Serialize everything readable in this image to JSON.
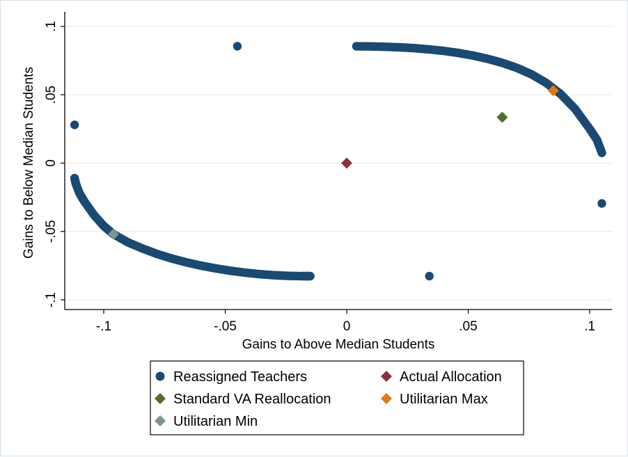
{
  "chart_data": {
    "type": "scatter",
    "xlabel": "Gains to Above Median Students",
    "ylabel": "Gains to Below Median Students",
    "xlim": [
      -0.11,
      0.11
    ],
    "ylim": [
      -0.1,
      0.1
    ],
    "x_ticks": [
      -0.1,
      -0.05,
      0,
      0.05,
      0.1
    ],
    "x_tick_labels": [
      "-.1",
      "-.05",
      "0",
      ".05",
      ".1"
    ],
    "y_ticks": [
      -0.1,
      -0.05,
      0,
      0.05,
      0.1
    ],
    "y_tick_labels": [
      "-.1",
      "-.05",
      "0",
      ".05",
      ".1"
    ],
    "grid": true,
    "legend_position": "bottom",
    "series": [
      {
        "name": "Reassigned Teachers",
        "marker": "circle",
        "color": "#1a4a72",
        "points": [
          [
            0.004,
            0.0855
          ],
          [
            0.01,
            0.0854
          ],
          [
            0.016,
            0.0851
          ],
          [
            0.022,
            0.0847
          ],
          [
            0.028,
            0.0841
          ],
          [
            0.034,
            0.0832
          ],
          [
            0.04,
            0.0821
          ],
          [
            0.046,
            0.0806
          ],
          [
            0.052,
            0.0787
          ],
          [
            0.058,
            0.0763
          ],
          [
            0.064,
            0.0734
          ],
          [
            0.07,
            0.0697
          ],
          [
            0.076,
            0.065
          ],
          [
            0.082,
            0.0588
          ],
          [
            0.088,
            0.0506
          ],
          [
            0.094,
            0.0396
          ],
          [
            0.1,
            0.025
          ],
          [
            0.103,
            0.017
          ],
          [
            0.105,
            0.0075
          ],
          [
            -0.112,
            -0.011
          ],
          [
            -0.1115,
            -0.015
          ],
          [
            -0.11,
            -0.022
          ],
          [
            -0.108,
            -0.028
          ],
          [
            -0.104,
            -0.038
          ],
          [
            -0.1,
            -0.046
          ],
          [
            -0.096,
            -0.052
          ],
          [
            -0.09,
            -0.058
          ],
          [
            -0.084,
            -0.0625
          ],
          [
            -0.078,
            -0.0665
          ],
          [
            -0.072,
            -0.0698
          ],
          [
            -0.066,
            -0.0726
          ],
          [
            -0.06,
            -0.075
          ],
          [
            -0.054,
            -0.077
          ],
          [
            -0.048,
            -0.0787
          ],
          [
            -0.042,
            -0.0801
          ],
          [
            -0.036,
            -0.0812
          ],
          [
            -0.03,
            -0.082
          ],
          [
            -0.024,
            -0.0825
          ],
          [
            -0.018,
            -0.0827
          ],
          [
            -0.015,
            -0.0827
          ],
          [
            -0.045,
            0.0855
          ],
          [
            -0.112,
            0.028
          ],
          [
            0.105,
            -0.0295
          ],
          [
            0.034,
            -0.0827
          ]
        ]
      },
      {
        "name": "Actual Allocation",
        "marker": "diamond",
        "color": "#8b3040",
        "points": [
          [
            0.0,
            0.0
          ]
        ]
      },
      {
        "name": "Standard VA Reallocation",
        "marker": "diamond",
        "color": "#4f6e2a",
        "points": [
          [
            0.064,
            0.0335
          ]
        ]
      },
      {
        "name": "Utilitarian Max",
        "marker": "diamond",
        "color": "#e07a10",
        "points": [
          [
            0.085,
            0.053
          ]
        ]
      },
      {
        "name": "Utilitarian Min",
        "marker": "diamond",
        "color": "#7d968c",
        "points": [
          [
            -0.096,
            -0.052
          ]
        ]
      }
    ]
  }
}
